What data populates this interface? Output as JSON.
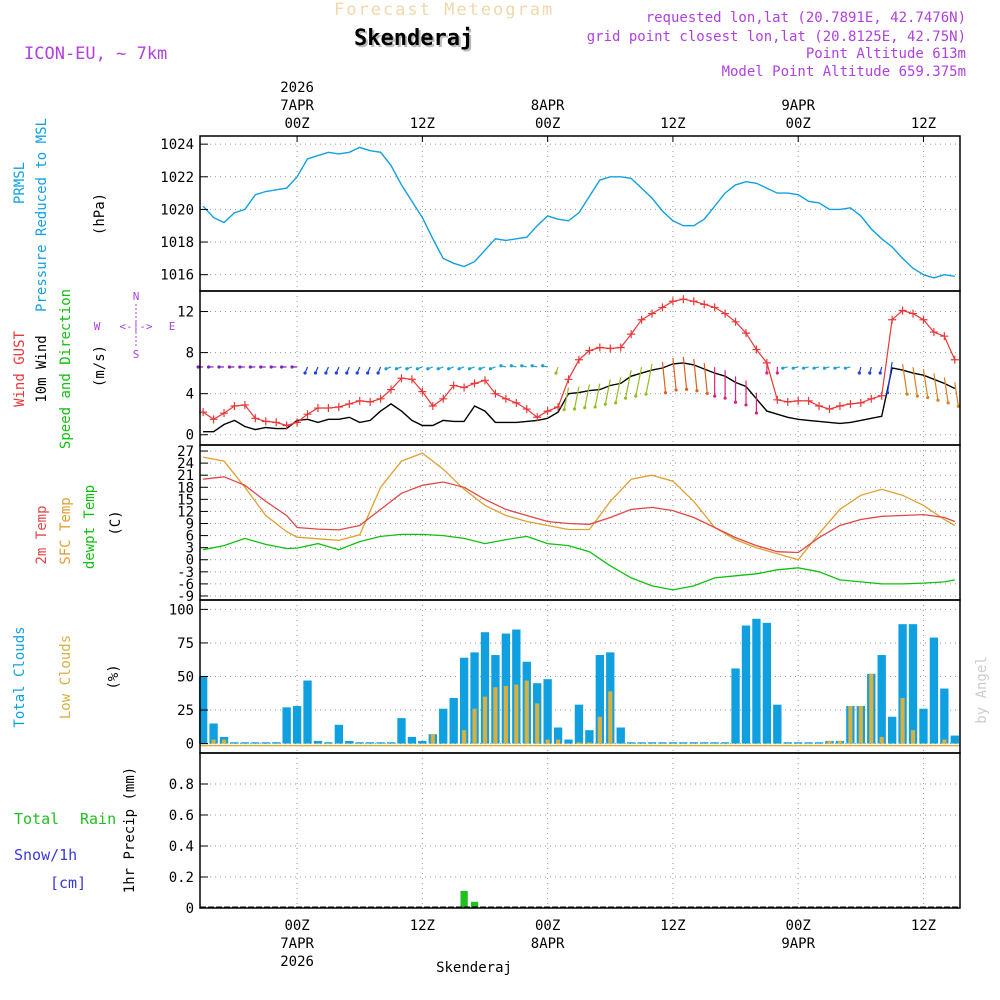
{
  "header": {
    "product_title": "Forecast Meteogram",
    "location": "Skenderaj",
    "model": "ICON-EU, ~ 7km",
    "requested": "requested lon,lat (20.7891E, 42.7476N)",
    "grid_point": "grid point closest lon,lat (20.8125E, 42.75N)",
    "point_altitude": "Point Altitude 613m",
    "model_altitude": "Model Point Altitude 659.375m",
    "watermark": "by Angel",
    "footer_location": "Skenderaj"
  },
  "colors": {
    "pressure": "#10a0e0",
    "gust": "#e83838",
    "wind": "#000000",
    "temp2m": "#e04848",
    "sfc": "#e0a030",
    "dewpt": "#10c010",
    "total_clouds": "#10a0e0",
    "low_clouds": "#d8b040",
    "rain": "#20c020",
    "snow": "#3838e0",
    "purple": "#b040e0"
  },
  "chart_data": [
    {
      "type": "line",
      "panel": "pressure",
      "label_lines": [
        "PRMSL",
        "Pressure Reduced to MSL"
      ],
      "unit": "(hPa)",
      "ylim": [
        1015,
        1024.5
      ],
      "yticks": [
        "1016",
        "1018",
        "1020",
        "1022",
        "1024"
      ],
      "ytick_values": [
        1016,
        1018,
        1020,
        1022,
        1024
      ],
      "x_hours": [
        -9,
        -8,
        -7,
        -6,
        -5,
        -4,
        -3,
        -2,
        -1,
        0,
        1,
        2,
        3,
        4,
        5,
        6,
        7,
        8,
        9,
        10,
        11,
        12,
        13,
        14,
        15,
        16,
        17,
        18,
        19,
        20,
        21,
        22,
        23,
        24,
        25,
        26,
        27,
        28,
        29,
        30,
        31,
        32,
        33,
        34,
        35,
        36,
        37,
        38,
        39,
        40,
        41,
        42,
        43,
        44,
        45,
        46,
        47,
        48,
        49,
        50,
        51,
        52,
        53,
        54,
        55,
        56,
        57,
        58,
        59,
        60,
        61,
        62,
        63
      ],
      "values": [
        1020.2,
        1019.5,
        1019.2,
        1019.8,
        1020,
        1020.9,
        1021.1,
        1021.2,
        1021.3,
        1022,
        1023.1,
        1023.3,
        1023.5,
        1023.4,
        1023.5,
        1023.8,
        1023.6,
        1023.5,
        1022.7,
        1021.5,
        1020.5,
        1019.5,
        1018.2,
        1017.0,
        1016.7,
        1016.5,
        1016.8,
        1017.5,
        1018.2,
        1018.1,
        1018.2,
        1018.3,
        1019.0,
        1019.6,
        1019.4,
        1019.3,
        1019.8,
        1020.8,
        1021.8,
        1022.0,
        1022.0,
        1021.9,
        1021.3,
        1020.7,
        1019.9,
        1019.3,
        1019.0,
        1019.0,
        1019.4,
        1020.2,
        1021.0,
        1021.5,
        1021.7,
        1021.6,
        1021.3,
        1021.0,
        1021.0,
        1020.9,
        1020.5,
        1020.4,
        1020.0,
        1020.0,
        1020.1,
        1019.6,
        1018.8,
        1018.2,
        1017.7,
        1017.0,
        1016.4,
        1016.0,
        1015.8,
        1016.0,
        1015.9
      ]
    },
    {
      "type": "line",
      "panel": "wind",
      "label_gust": "Wind GUST",
      "label_wind": "10m Wind",
      "label_dir": "Speed and Direction",
      "unit": "(m/s)",
      "compass": {
        "n": "N",
        "s": "S",
        "w": "W",
        "e": "E",
        "arrow": "<-|->"
      },
      "ylim": [
        -1,
        14
      ],
      "yticks": [
        "0",
        "4",
        "8",
        "12"
      ],
      "ytick_values": [
        0,
        4,
        8,
        12
      ],
      "x_hours": [
        -9,
        -8,
        -7,
        -6,
        -5,
        -4,
        -3,
        -2,
        -1,
        0,
        1,
        2,
        3,
        4,
        5,
        6,
        7,
        8,
        9,
        10,
        11,
        12,
        13,
        14,
        15,
        16,
        17,
        18,
        19,
        20,
        21,
        22,
        23,
        24,
        25,
        26,
        27,
        28,
        29,
        30,
        31,
        32,
        33,
        34,
        35,
        36,
        37,
        38,
        39,
        40,
        41,
        42,
        43,
        44,
        45,
        46,
        47,
        48,
        49,
        50,
        51,
        52,
        53,
        54,
        55,
        56,
        57,
        58,
        59,
        60,
        61,
        62,
        63
      ],
      "gust": [
        2.2,
        1.5,
        2.1,
        2.8,
        2.9,
        1.6,
        1.3,
        1.2,
        0.9,
        1.2,
        2.0,
        2.6,
        2.6,
        2.7,
        3.0,
        3.3,
        3.2,
        3.5,
        4.4,
        5.5,
        5.4,
        4.2,
        2.8,
        3.5,
        4.8,
        4.6,
        5.0,
        5.3,
        4.0,
        3.5,
        3.1,
        2.5,
        1.7,
        2.3,
        2.7,
        5.4,
        7.3,
        8.2,
        8.5,
        8.4,
        8.5,
        9.8,
        11.2,
        11.8,
        12.4,
        13.0,
        13.2,
        13.0,
        12.7,
        12.4,
        11.8,
        11.0,
        9.9,
        8.3,
        7.0,
        3.4,
        3.2,
        3.3,
        3.3,
        2.8,
        2.5,
        2.8,
        3.0,
        3.1,
        3.5,
        3.8,
        11.2,
        12.1,
        11.8,
        11.2,
        10.0,
        9.6,
        7.3
      ],
      "wind": [
        0.3,
        0.3,
        1.0,
        1.4,
        0.8,
        0.5,
        0.7,
        0.6,
        0.6,
        1.4,
        1.5,
        1.2,
        1.5,
        1.5,
        1.7,
        1.2,
        1.4,
        2.3,
        3.0,
        2.3,
        1.4,
        0.9,
        0.9,
        1.4,
        1.3,
        1.3,
        2.8,
        2.3,
        1.2,
        1.2,
        1.2,
        1.3,
        1.4,
        1.6,
        2.2,
        4.0,
        4.1,
        4.3,
        4.4,
        4.8,
        5.0,
        5.7,
        6.0,
        6.3,
        6.5,
        6.9,
        7.0,
        6.8,
        6.4,
        6.0,
        5.7,
        5.1,
        4.7,
        3.5,
        2.3,
        2.0,
        1.7,
        1.5,
        1.4,
        1.3,
        1.2,
        1.1,
        1.2,
        1.4,
        1.6,
        1.8,
        6.5,
        6.3,
        6.0,
        5.8,
        5.4,
        5.0,
        4.5
      ]
    },
    {
      "type": "line",
      "panel": "temperature",
      "label_2m": "2m Temp",
      "label_sfc": "SFC Temp",
      "label_dew": "dewpt Temp",
      "unit": "(C)",
      "ylim": [
        -10,
        28.5
      ],
      "yticks": [
        "-9",
        "-6",
        "-3",
        "0",
        "3",
        "6",
        "9",
        "12",
        "15",
        "18",
        "21",
        "24",
        "27"
      ],
      "ytick_values": [
        -9,
        -6,
        -3,
        0,
        3,
        6,
        9,
        12,
        15,
        18,
        21,
        24,
        27
      ],
      "x_hours": [
        -9,
        -7,
        -5,
        -3,
        -1,
        0,
        2,
        4,
        6,
        8,
        10,
        12,
        14,
        16,
        18,
        20,
        22,
        24,
        26,
        28,
        30,
        32,
        34,
        36,
        38,
        40,
        42,
        44,
        46,
        48,
        50,
        52,
        54,
        56,
        58,
        60,
        62,
        63
      ],
      "temp2m": [
        20.0,
        20.6,
        18.5,
        14.5,
        11.0,
        8.0,
        7.6,
        7.4,
        8.5,
        12.5,
        16.5,
        18.5,
        19.3,
        18.0,
        15.0,
        12.5,
        11.0,
        9.5,
        9.0,
        8.8,
        10.5,
        12.5,
        13.0,
        12.2,
        10.5,
        8.0,
        5.5,
        3.5,
        2.0,
        1.8,
        5.5,
        8.5,
        10.0,
        10.8,
        11.0,
        11.2,
        10.5,
        9.5
      ],
      "sfc": [
        25.5,
        24.5,
        18.0,
        11.0,
        7.0,
        5.6,
        5.2,
        4.8,
        6.2,
        18.0,
        24.5,
        26.5,
        22.5,
        17.5,
        13.5,
        11.0,
        9.5,
        8.5,
        7.5,
        7.5,
        14.5,
        20.0,
        21.0,
        19.5,
        14.5,
        8.0,
        5.0,
        3.0,
        1.5,
        0.0,
        6.5,
        12.5,
        16.0,
        17.5,
        16.0,
        13.5,
        10.0,
        8.5
      ],
      "dewpt": [
        2.5,
        3.5,
        5.3,
        3.8,
        2.8,
        2.9,
        4.0,
        2.5,
        4.5,
        5.8,
        6.3,
        6.3,
        6.0,
        5.3,
        4.0,
        5.0,
        5.8,
        4.0,
        3.5,
        2.0,
        -1.5,
        -4.5,
        -6.5,
        -7.5,
        -6.5,
        -4.5,
        -4.0,
        -3.5,
        -2.5,
        -2.0,
        -3.0,
        -5.0,
        -5.5,
        -6.0,
        -6.0,
        -5.8,
        -5.5,
        -5.0
      ]
    },
    {
      "type": "bar",
      "panel": "clouds",
      "label_total": "Total Clouds",
      "label_low": "Low Clouds",
      "unit": "(%)",
      "ylim": [
        -7,
        107
      ],
      "yticks": [
        "0",
        "25",
        "50",
        "75",
        "100"
      ],
      "ytick_values": [
        0,
        25,
        50,
        75,
        100
      ],
      "x_hours": [
        -9,
        -8,
        -7,
        -6,
        -5,
        -4,
        -3,
        -2,
        -1,
        0,
        1,
        2,
        3,
        4,
        5,
        6,
        7,
        8,
        9,
        10,
        11,
        12,
        13,
        14,
        15,
        16,
        17,
        18,
        19,
        20,
        21,
        22,
        23,
        24,
        25,
        26,
        27,
        28,
        29,
        30,
        31,
        32,
        33,
        34,
        35,
        36,
        37,
        38,
        39,
        40,
        41,
        42,
        43,
        44,
        45,
        46,
        47,
        48,
        49,
        50,
        51,
        52,
        53,
        54,
        55,
        56,
        57,
        58,
        59,
        60,
        61,
        62,
        63
      ],
      "total": [
        50,
        15,
        5,
        1,
        1,
        1,
        1,
        1,
        27,
        28,
        47,
        2,
        1,
        14,
        2,
        1,
        1,
        1,
        1,
        19,
        5,
        2,
        7,
        26,
        34,
        64,
        68,
        83,
        66,
        82,
        85,
        61,
        45,
        48,
        12,
        3,
        29,
        10,
        66,
        68,
        12,
        1,
        1,
        1,
        1,
        1,
        1,
        1,
        1,
        1,
        1,
        56,
        88,
        93,
        90,
        29,
        1,
        1,
        1,
        1,
        2,
        2,
        28,
        28,
        52,
        66,
        20,
        89,
        89,
        26,
        79,
        41,
        6
      ],
      "low": [
        0,
        3,
        3,
        0,
        0,
        0,
        0,
        0,
        0,
        0,
        0,
        0,
        0,
        0,
        0,
        0,
        0,
        0,
        0,
        0,
        0,
        0,
        7,
        0,
        0,
        10,
        26,
        35,
        42,
        43,
        44,
        47,
        30,
        3,
        3,
        0,
        1,
        1,
        20,
        39,
        0,
        0,
        0,
        0,
        0,
        0,
        0,
        0,
        0,
        0,
        0,
        0,
        0,
        0,
        0,
        0,
        0,
        0,
        0,
        0,
        2,
        2,
        28,
        28,
        52,
        5,
        0,
        34,
        10,
        0,
        0,
        3,
        0
      ]
    },
    {
      "type": "bar",
      "panel": "precip",
      "label_total": "Total",
      "label_rain": "Rain",
      "label_snow": "Snow/1h",
      "label_cm": "[cm]",
      "unit": "1hr Precip (mm)",
      "ylim": [
        0,
        1.0
      ],
      "yticks": [
        "0",
        "0.2",
        "0.4",
        "0.6",
        "0.8"
      ],
      "ytick_values": [
        0,
        0.2,
        0.4,
        0.6,
        0.8
      ],
      "x_hours": [
        16,
        17
      ],
      "rain": [
        0.11,
        0.04
      ]
    }
  ],
  "time_axis": {
    "top": [
      {
        "hour": 0,
        "lines": [
          "2026",
          "7APR",
          "00Z"
        ]
      },
      {
        "hour": 12,
        "lines": [
          "12Z"
        ]
      },
      {
        "hour": 24,
        "lines": [
          "8APR",
          "00Z"
        ]
      },
      {
        "hour": 36,
        "lines": [
          "12Z"
        ]
      },
      {
        "hour": 48,
        "lines": [
          "9APR",
          "00Z"
        ]
      },
      {
        "hour": 60,
        "lines": [
          "12Z"
        ]
      }
    ],
    "bottom": [
      {
        "hour": 0,
        "lines": [
          "00Z",
          "7APR",
          "2026"
        ]
      },
      {
        "hour": 12,
        "lines": [
          "12Z"
        ]
      },
      {
        "hour": 24,
        "lines": [
          "00Z",
          "8APR"
        ]
      },
      {
        "hour": 36,
        "lines": [
          "12Z"
        ]
      },
      {
        "hour": 48,
        "lines": [
          "00Z",
          "9APR"
        ]
      },
      {
        "hour": 60,
        "lines": [
          "12Z"
        ]
      }
    ]
  }
}
